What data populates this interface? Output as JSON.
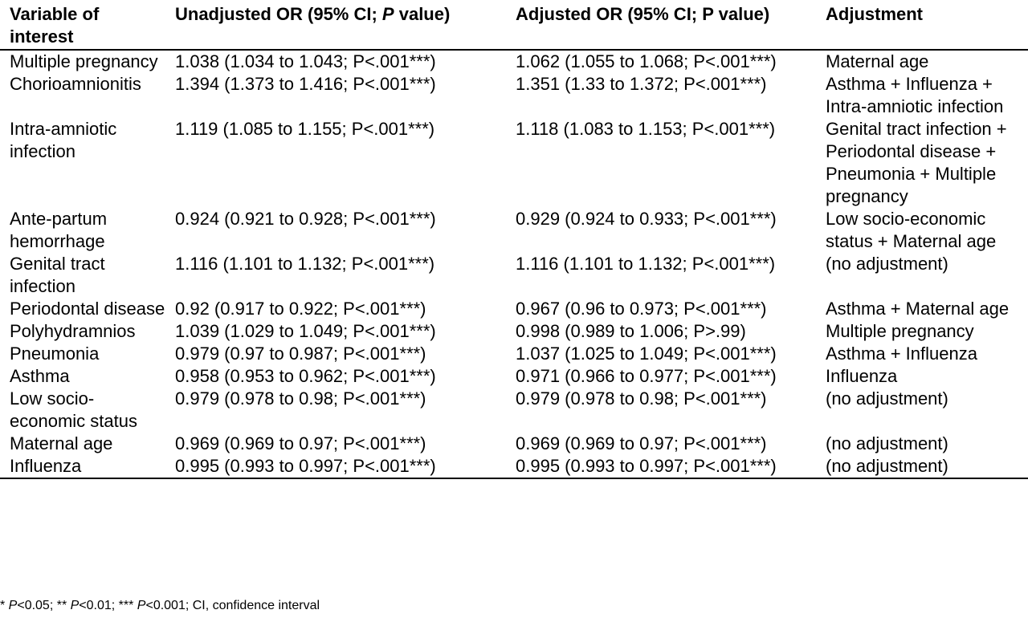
{
  "table": {
    "headers": {
      "col1": "Variable of interest",
      "col2_prefix": "Unadjusted OR (95% CI; ",
      "col2_italic": "P",
      "col2_suffix": " value)",
      "col3": "Adjusted OR (95% CI; P value)",
      "col4": "Adjustment"
    },
    "rows": [
      {
        "variable": "Multiple pregnancy",
        "unadjusted": "1.038 (1.034 to 1.043; P<.001***)",
        "adjusted": "1.062 (1.055 to 1.068; P<.001***)",
        "adjustment": "Maternal age"
      },
      {
        "variable": "Chorioamnionitis",
        "unadjusted": "1.394 (1.373 to 1.416; P<.001***)",
        "adjusted": "1.351 (1.33 to 1.372; P<.001***)",
        "adjustment": "Asthma + Influenza + Intra-amniotic infection"
      },
      {
        "variable": "Intra-amniotic infection",
        "unadjusted": "1.119 (1.085 to 1.155; P<.001***)",
        "adjusted": "1.118 (1.083 to 1.153; P<.001***)",
        "adjustment": "Genital tract infection + Periodontal disease + Pneumonia + Multiple pregnancy"
      },
      {
        "variable": "Ante-partum hemorrhage",
        "unadjusted": "0.924 (0.921 to 0.928; P<.001***)",
        "adjusted": "0.929 (0.924 to 0.933; P<.001***)",
        "adjustment": "Low socio-economic status + Maternal age"
      },
      {
        "variable": "Genital tract infection",
        "unadjusted": "1.116 (1.101 to 1.132; P<.001***)",
        "adjusted": "1.116 (1.101 to 1.132; P<.001***)",
        "adjustment": "(no adjustment)"
      },
      {
        "variable": "Periodontal disease",
        "unadjusted": "0.92 (0.917 to 0.922; P<.001***)",
        "adjusted": "0.967 (0.96 to 0.973; P<.001***)",
        "adjustment": "Asthma + Maternal age"
      },
      {
        "variable": "Polyhydramnios",
        "unadjusted": "1.039 (1.029 to 1.049; P<.001***)",
        "adjusted": "0.998 (0.989 to 1.006; P>.99)",
        "adjustment": "Multiple pregnancy"
      },
      {
        "variable": "Pneumonia",
        "unadjusted": "0.979 (0.97 to 0.987; P<.001***)",
        "adjusted": "1.037 (1.025 to 1.049; P<.001***)",
        "adjustment": "Asthma + Influenza"
      },
      {
        "variable": "Asthma",
        "unadjusted": "0.958 (0.953 to 0.962; P<.001***)",
        "adjusted": "0.971 (0.966 to 0.977; P<.001***)",
        "adjustment": "Influenza"
      },
      {
        "variable": "Low socio-economic status",
        "unadjusted": "0.979 (0.978 to 0.98; P<.001***)",
        "adjusted": "0.979 (0.978 to 0.98; P<.001***)",
        "adjustment": "(no adjustment)"
      },
      {
        "variable": "Maternal age",
        "unadjusted": "0.969 (0.969 to 0.97; P<.001***)",
        "adjusted": "0.969 (0.969 to 0.97; P<.001***)",
        "adjustment": "(no adjustment)"
      },
      {
        "variable": "Influenza",
        "unadjusted": "0.995 (0.993 to 0.997; P<.001***)",
        "adjusted": "0.995 (0.993 to 0.997; P<.001***)",
        "adjustment": "(no adjustment)"
      }
    ]
  },
  "footnote": {
    "p1_prefix": "* ",
    "p1_italic": "P",
    "p1_suffix": "<0.05; ** ",
    "p2_italic": "P",
    "p2_suffix": "<0.01; *** ",
    "p3_italic": "P",
    "p3_suffix": "<0.001; CI, confidence interval"
  }
}
